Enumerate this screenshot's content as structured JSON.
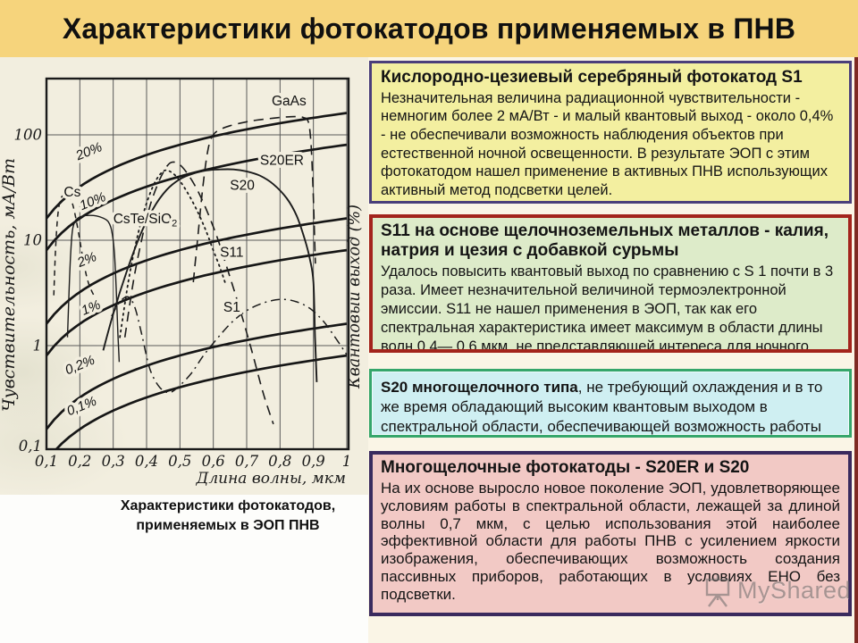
{
  "title": "Характеристики фотокатодов применяемых в ПНВ",
  "caption": {
    "line1": "Характеристики фотокатодов,",
    "line2": "применяемых в ЭОП ПНВ"
  },
  "watermark": {
    "label": "MyShared",
    "icon": "presentation-easel-icon"
  },
  "palette": {
    "title_band": "#F6D47C",
    "page_background": "#FDFDFB",
    "right_column_background": "#FAF5E6",
    "edge_stripe": "#7E2A23",
    "chart_paper": "#F2EEDF",
    "box_s1_bg": "#F3EFA0",
    "box_s1_border": "#4A3F7A",
    "box_s11_bg": "#DDEBC9",
    "box_s11_border": "#A3241C",
    "box_s20_bg": "#CFEFF2",
    "box_s20_border": "#35A66B",
    "box_multi_bg": "#F2C9C5",
    "box_multi_border": "#3A2A5E",
    "text": "#141414"
  },
  "boxes": [
    {
      "id": "s1",
      "heading": "Кислородно-цезиевый серебряный фотокатод S1",
      "body": "Незначительная величина радиационной чувствительности - немногим более 2 мА/Вт - и малый квантовый выход - около 0,4% - не обеспечивали возможность наблюдения объектов при естественной ночной освещенности. В результате ЭОП с этим фотокатодом нашел применение в активных ПНВ использующих активный метод подсветки целей."
    },
    {
      "id": "s11",
      "heading": "S11 на основе щелочноземельных металлов - калия, натрия и цезия с добавкой сурьмы",
      "body": "Удалось повысить квантовый выход по сравнению с S 1 почти в 3 раза. Имеет незначительной величиной термоэлектронной эмиссии. S11 не нашел применения в ЭОП, так как его спектральная характеристика имеет максимум в области длины волн 0,4— 0,6 мкм, не представляющей интереса для ночного видения."
    },
    {
      "id": "s20",
      "heading": "S20 многощелочного типа",
      "body": ", не требующий охлаждения и в то же время обладающий высоким квантовым выходом в спектральной области, обеспечивающей возможность работы ПНВ в условиях ЕНО."
    },
    {
      "id": "multi",
      "heading": "Многощелочные фотокатоды - S20ER и S20",
      "body": "На их основе выросло новое поколение ЭОП, удовлетворяющее условиям работы в спектральной области, лежащей за длиной волны 0,7 мкм, с целью использования этой наиболее эффективной области для работы ПНВ с усилением яркости изображения, обеспечивающих возможность создания пассивных приборов, работающих в условиях ЕНО без подсветки."
    }
  ],
  "chart_data": {
    "type": "line",
    "title": "",
    "xlabel": "Длина волны, мкм",
    "ylabel_left": "Чувствительность, мА/Вт",
    "ylabel_right": "Квантовый выход (%)",
    "x_scale": "linear",
    "y_scale": "log",
    "xlim": [
      0.1,
      1.0
    ],
    "ylim": [
      0.1,
      340
    ],
    "grid": true,
    "x_ticks": [
      "0,1",
      "0,2",
      "0,3",
      "0,4",
      "0,5",
      "0,6",
      "0,7",
      "0,8",
      "0,9",
      "1"
    ],
    "x_tick_values": [
      0.1,
      0.2,
      0.3,
      0.4,
      0.5,
      0.6,
      0.7,
      0.8,
      0.9,
      1.0
    ],
    "y_ticks": [
      "100",
      "10",
      "1",
      "0,1"
    ],
    "y_tick_values": [
      100,
      10,
      1,
      0.1
    ],
    "quantum_efficiency_lines": [
      {
        "label": "20%",
        "percent": 20,
        "label_pos": [
          0.232,
          64
        ]
      },
      {
        "label": "10%",
        "percent": 10,
        "label_pos": [
          0.243,
          21.5
        ]
      },
      {
        "label": "2%",
        "percent": 2,
        "label_pos": [
          0.226,
          6.0
        ]
      },
      {
        "label": "1%",
        "percent": 1,
        "label_pos": [
          0.238,
          2.1
        ]
      },
      {
        "label": "0,2%",
        "percent": 0.2,
        "label_pos": [
          0.205,
          0.6
        ]
      },
      {
        "label": "0,1%",
        "percent": 0.1,
        "label_pos": [
          0.21,
          0.245
        ]
      }
    ],
    "series": [
      {
        "name": "Cs",
        "dash": "dashed_short",
        "width": 1.5,
        "label": "Cs",
        "label_pos": [
          0.152,
          26
        ],
        "points": [
          [
            0.122,
            3
          ],
          [
            0.127,
            8
          ],
          [
            0.133,
            16
          ],
          [
            0.14,
            23
          ],
          [
            0.15,
            27
          ],
          [
            0.16,
            28
          ],
          [
            0.17,
            26
          ],
          [
            0.18,
            21
          ],
          [
            0.19,
            15
          ],
          [
            0.2,
            10
          ],
          [
            0.21,
            6.5
          ],
          [
            0.225,
            4
          ],
          [
            0.245,
            2.9
          ],
          [
            0.265,
            2.5
          ]
        ]
      },
      {
        "name": "CsTe/SiO2",
        "dash": "solid",
        "width": 1.4,
        "label": "CsTe/SiO",
        "sub": "2",
        "label_pos": [
          0.3,
          14.5
        ],
        "points": [
          [
            0.163,
            1.2
          ],
          [
            0.168,
            3.5
          ],
          [
            0.173,
            8
          ],
          [
            0.178,
            12.5
          ],
          [
            0.185,
            15
          ],
          [
            0.195,
            16.3
          ],
          [
            0.21,
            17
          ],
          [
            0.23,
            17.2
          ],
          [
            0.25,
            17
          ],
          [
            0.27,
            16.2
          ],
          [
            0.285,
            15
          ],
          [
            0.295,
            12.5
          ],
          [
            0.303,
            8
          ],
          [
            0.309,
            3.5
          ],
          [
            0.314,
            1.3
          ],
          [
            0.318,
            0.7
          ]
        ]
      },
      {
        "name": "S11",
        "dash": "dotted",
        "width": 1.8,
        "label": "S11",
        "label_pos": [
          0.62,
          7
        ],
        "points": [
          [
            0.32,
            1.2
          ],
          [
            0.345,
            4
          ],
          [
            0.37,
            10
          ],
          [
            0.395,
            20
          ],
          [
            0.42,
            33
          ],
          [
            0.44,
            42
          ],
          [
            0.455,
            46
          ],
          [
            0.47,
            45
          ],
          [
            0.49,
            40
          ],
          [
            0.515,
            31
          ],
          [
            0.545,
            21
          ],
          [
            0.575,
            13
          ],
          [
            0.6,
            8
          ],
          [
            0.62,
            5.5
          ],
          [
            0.635,
            4
          ]
        ]
      },
      {
        "name": "S20",
        "dash": "dashed",
        "width": 1.6,
        "label": "S20",
        "label_pos": [
          0.65,
          30
        ],
        "points": [
          [
            0.335,
            1.2
          ],
          [
            0.36,
            4
          ],
          [
            0.385,
            10
          ],
          [
            0.41,
            21
          ],
          [
            0.435,
            35
          ],
          [
            0.455,
            47
          ],
          [
            0.47,
            54
          ],
          [
            0.485,
            55
          ],
          [
            0.5,
            52
          ],
          [
            0.52,
            44
          ],
          [
            0.545,
            33
          ],
          [
            0.575,
            21
          ],
          [
            0.61,
            11
          ],
          [
            0.645,
            5
          ],
          [
            0.68,
            2.2
          ],
          [
            0.715,
            0.9
          ],
          [
            0.75,
            0.35
          ],
          [
            0.78,
            0.18
          ]
        ]
      },
      {
        "name": "S20ER",
        "dash": "solid",
        "width": 1.9,
        "label": "S20ER",
        "label_pos": [
          0.74,
          52
        ],
        "points": [
          [
            0.27,
            0.9
          ],
          [
            0.3,
            2
          ],
          [
            0.34,
            5
          ],
          [
            0.38,
            11
          ],
          [
            0.42,
            20
          ],
          [
            0.46,
            30
          ],
          [
            0.5,
            38
          ],
          [
            0.54,
            43
          ],
          [
            0.58,
            46
          ],
          [
            0.62,
            47
          ],
          [
            0.66,
            47
          ],
          [
            0.7,
            45
          ],
          [
            0.74,
            41
          ],
          [
            0.78,
            34
          ],
          [
            0.82,
            25
          ],
          [
            0.85,
            17
          ],
          [
            0.875,
            10
          ],
          [
            0.89,
            6.5
          ],
          [
            0.9,
            4
          ],
          [
            0.905,
            1.2
          ],
          [
            0.91,
            0.45
          ]
        ]
      },
      {
        "name": "GaAs",
        "dash": "dashed",
        "width": 1.6,
        "label": "GaAs",
        "label_pos": [
          0.775,
          190
        ],
        "points": [
          [
            0.54,
            4
          ],
          [
            0.555,
            12
          ],
          [
            0.57,
            35
          ],
          [
            0.585,
            75
          ],
          [
            0.6,
            100
          ],
          [
            0.62,
            112
          ],
          [
            0.65,
            122
          ],
          [
            0.69,
            131
          ],
          [
            0.73,
            138
          ],
          [
            0.78,
            144
          ],
          [
            0.82,
            148
          ],
          [
            0.85,
            149
          ],
          [
            0.87,
            146
          ],
          [
            0.885,
            132
          ],
          [
            0.893,
            80
          ],
          [
            0.899,
            30
          ],
          [
            0.903,
            12
          ],
          [
            0.906,
            6
          ]
        ]
      },
      {
        "name": "S1",
        "dash": "dashdot",
        "width": 1.5,
        "label": "S1",
        "label_pos": [
          0.63,
          2.1
        ],
        "points": [
          [
            0.295,
            1.9
          ],
          [
            0.32,
            2.6
          ],
          [
            0.345,
            2.9
          ],
          [
            0.365,
            2.3
          ],
          [
            0.385,
            1.3
          ],
          [
            0.41,
            0.6
          ],
          [
            0.44,
            0.4
          ],
          [
            0.47,
            0.36
          ],
          [
            0.5,
            0.42
          ],
          [
            0.535,
            0.55
          ],
          [
            0.57,
            0.8
          ],
          [
            0.61,
            1.15
          ],
          [
            0.65,
            1.6
          ],
          [
            0.69,
            2.05
          ],
          [
            0.73,
            2.4
          ],
          [
            0.77,
            2.65
          ],
          [
            0.81,
            2.75
          ],
          [
            0.85,
            2.6
          ],
          [
            0.89,
            2.25
          ],
          [
            0.93,
            1.7
          ],
          [
            0.965,
            1.2
          ],
          [
            1.0,
            0.82
          ]
        ]
      }
    ]
  }
}
